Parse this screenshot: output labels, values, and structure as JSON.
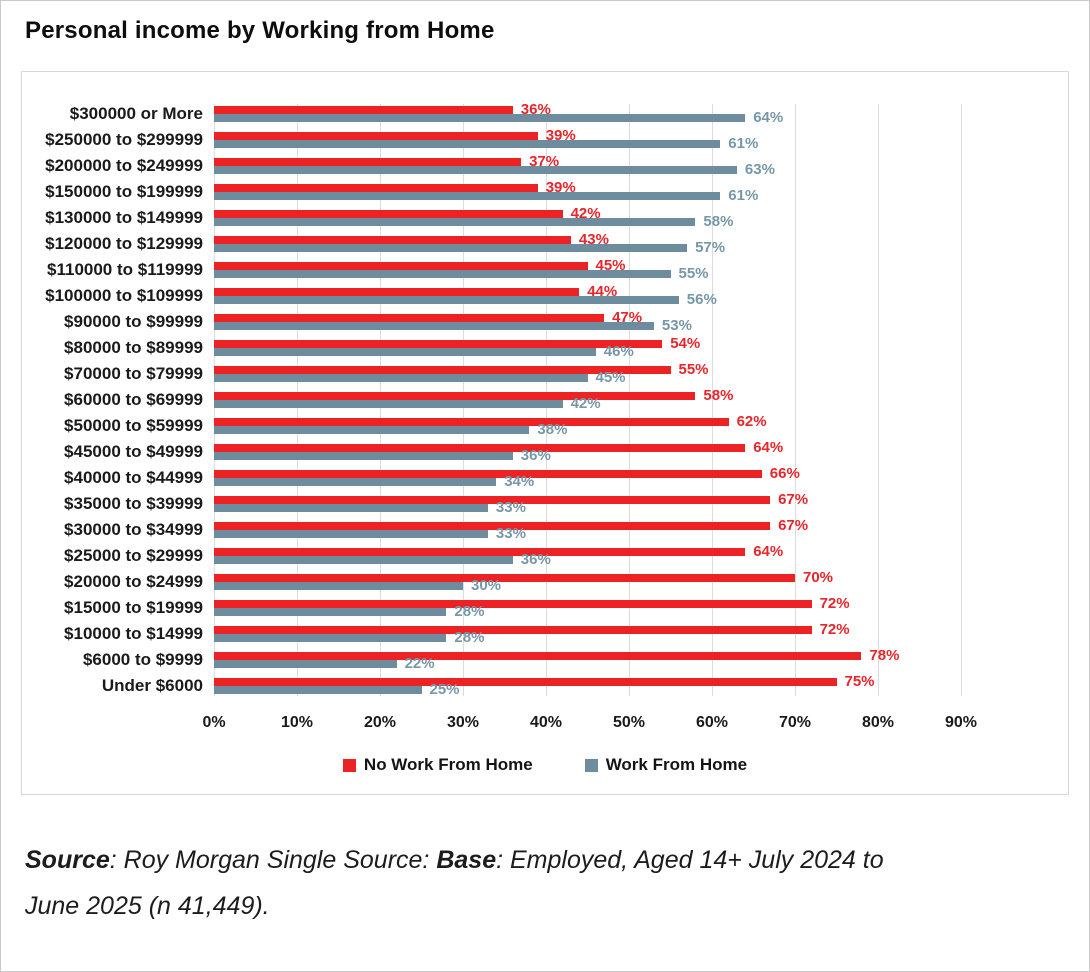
{
  "page": {
    "title": "Personal income by Working from Home"
  },
  "chart_data": {
    "type": "bar",
    "orientation": "horizontal",
    "title": "Personal income by Working from Home",
    "categories": [
      "$300000 or More",
      "$250000 to $299999",
      "$200000 to $249999",
      "$150000 to $199999",
      "$130000 to $149999",
      "$120000 to $129999",
      "$110000 to $119999",
      "$100000 to $109999",
      "$90000 to $99999",
      "$80000 to $89999",
      "$70000 to $79999",
      "$60000 to $69999",
      "$50000 to $59999",
      "$45000 to $49999",
      "$40000 to $44999",
      "$35000 to $39999",
      "$30000 to $34999",
      "$25000 to $29999",
      "$20000 to $24999",
      "$15000 to $19999",
      "$10000 to $14999",
      "$6000 to $9999",
      "Under $6000"
    ],
    "series": [
      {
        "name": "No Work From Home",
        "color": "#ed2224",
        "values": [
          36,
          39,
          37,
          39,
          42,
          43,
          45,
          44,
          47,
          54,
          55,
          58,
          62,
          64,
          66,
          67,
          67,
          64,
          70,
          72,
          72,
          78,
          75
        ]
      },
      {
        "name": "Work From Home",
        "color": "#6d8d9e",
        "values": [
          64,
          61,
          63,
          61,
          58,
          57,
          55,
          56,
          53,
          46,
          45,
          42,
          38,
          36,
          34,
          33,
          33,
          36,
          30,
          28,
          28,
          22,
          25
        ]
      }
    ],
    "x_ticks": [
      "0%",
      "10%",
      "20%",
      "30%",
      "40%",
      "50%",
      "60%",
      "70%",
      "80%",
      "90%"
    ],
    "xlim": [
      0,
      90
    ],
    "value_label_suffix": "%",
    "grid": "vertical",
    "legend_position": "bottom"
  },
  "source": {
    "label_bold": "Source",
    "mid": ": Roy Morgan Single Source: ",
    "base_bold": "Base",
    "rest": ": Employed, Aged 14+ July 2024 to",
    "line2": "June 2025 (n 41,449)."
  }
}
